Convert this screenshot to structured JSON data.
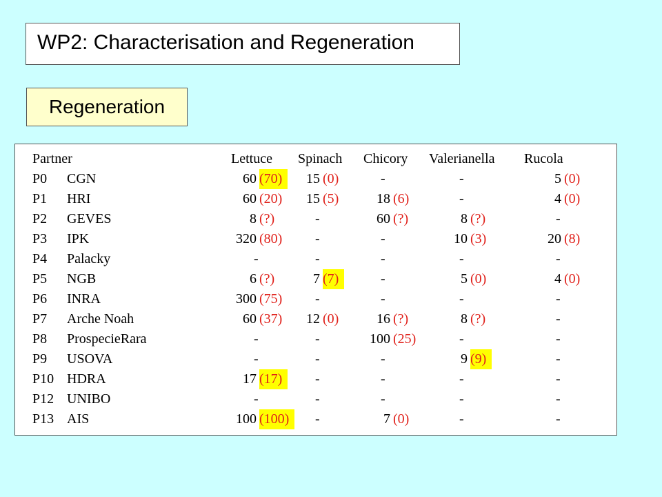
{
  "title": "WP2: Characterisation and Regeneration",
  "subtitle": "Regeneration",
  "table": {
    "headers": [
      "Partner",
      "Lettuce",
      "Spinach",
      "Chicory",
      "Valerianella",
      "Rucola"
    ],
    "rows": [
      {
        "code": "P0",
        "name": "CGN",
        "lettuce": [
          "60",
          "(70)"
        ],
        "spinach": [
          "15",
          "(0)"
        ],
        "chicory": [
          "-",
          ""
        ],
        "valerianella": [
          "-",
          ""
        ],
        "rucola": [
          "5",
          "(0)"
        ]
      },
      {
        "code": "P1",
        "name": "HRI",
        "lettuce": [
          "60",
          "(20)"
        ],
        "spinach": [
          "15",
          "(5)"
        ],
        "chicory": [
          "18",
          "(6)"
        ],
        "valerianella": [
          "-",
          ""
        ],
        "rucola": [
          "4",
          "(0)"
        ]
      },
      {
        "code": "P2",
        "name": "GEVES",
        "lettuce": [
          "8",
          "(?)"
        ],
        "spinach": [
          "-",
          ""
        ],
        "chicory": [
          "60",
          "(?)"
        ],
        "valerianella": [
          "8",
          "(?)"
        ],
        "rucola": [
          "-",
          ""
        ]
      },
      {
        "code": "P3",
        "name": "IPK",
        "lettuce": [
          "320",
          "(80)"
        ],
        "spinach": [
          "-",
          ""
        ],
        "chicory": [
          "-",
          ""
        ],
        "valerianella": [
          "10",
          "(3)"
        ],
        "rucola": [
          "20",
          "(8)"
        ]
      },
      {
        "code": "P4",
        "name": "Palacky",
        "lettuce": [
          "-",
          ""
        ],
        "spinach": [
          "-",
          ""
        ],
        "chicory": [
          "-",
          ""
        ],
        "valerianella": [
          "-",
          ""
        ],
        "rucola": [
          "-",
          ""
        ]
      },
      {
        "code": "P5",
        "name": "NGB",
        "lettuce": [
          "6",
          "(?)"
        ],
        "spinach": [
          "7",
          "(7)"
        ],
        "chicory": [
          "-",
          ""
        ],
        "valerianella": [
          "5",
          "(0)"
        ],
        "rucola": [
          "4",
          "(0)"
        ]
      },
      {
        "code": "P6",
        "name": "INRA",
        "lettuce": [
          "300",
          "(75)"
        ],
        "spinach": [
          "-",
          ""
        ],
        "chicory": [
          "-",
          ""
        ],
        "valerianella": [
          "-",
          ""
        ],
        "rucola": [
          "-",
          ""
        ]
      },
      {
        "code": "P7",
        "name": "Arche Noah",
        "lettuce": [
          "60",
          "(37)"
        ],
        "spinach": [
          "12",
          "(0)"
        ],
        "chicory": [
          "16",
          "(?)"
        ],
        "valerianella": [
          "8",
          "(?)"
        ],
        "rucola": [
          "-",
          ""
        ]
      },
      {
        "code": "P8",
        "name": "ProspecieRara",
        "lettuce": [
          "-",
          ""
        ],
        "spinach": [
          "-",
          ""
        ],
        "chicory": [
          "100",
          "(25)"
        ],
        "valerianella": [
          "-",
          ""
        ],
        "rucola": [
          "-",
          ""
        ]
      },
      {
        "code": "P9",
        "name": "USOVA",
        "lettuce": [
          "-",
          ""
        ],
        "spinach": [
          "-",
          ""
        ],
        "chicory": [
          "-",
          ""
        ],
        "valerianella": [
          "9",
          "(9)"
        ],
        "rucola": [
          "-",
          ""
        ]
      },
      {
        "code": "P10",
        "name": "HDRA",
        "lettuce": [
          "17",
          "(17)"
        ],
        "spinach": [
          "-",
          ""
        ],
        "chicory": [
          "-",
          ""
        ],
        "valerianella": [
          "-",
          ""
        ],
        "rucola": [
          "-",
          ""
        ]
      },
      {
        "code": "P12",
        "name": "UNIBO",
        "lettuce": [
          "-",
          ""
        ],
        "spinach": [
          "-",
          ""
        ],
        "chicory": [
          "-",
          ""
        ],
        "valerianella": [
          "-",
          ""
        ],
        "rucola": [
          "-",
          ""
        ]
      },
      {
        "code": "P13",
        "name": "AIS",
        "lettuce": [
          "100",
          "(100)"
        ],
        "spinach": [
          "-",
          ""
        ],
        "chicory": [
          "7",
          "(0)"
        ],
        "valerianella": [
          "-",
          ""
        ],
        "rucola": [
          "-",
          ""
        ]
      }
    ],
    "highlighted": [
      "0.lettuce",
      "5.spinach",
      "9.valerianella",
      "10.lettuce",
      "12.lettuce"
    ]
  },
  "colors": {
    "background": "#ccffff",
    "highlight": "#ffff00",
    "note_text": "#e0201a",
    "subtitle_box": "#ffffcc"
  }
}
